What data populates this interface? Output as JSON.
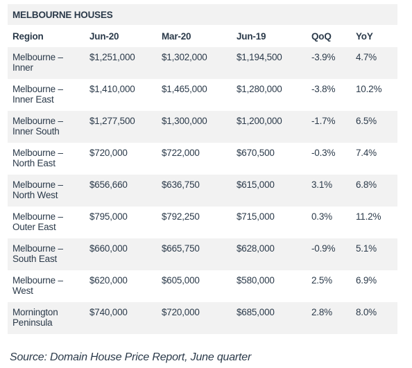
{
  "table": {
    "title": "MELBOURNE HOUSES",
    "headers": {
      "region": "Region",
      "jun20": "Jun-20",
      "mar20": "Mar-20",
      "jun19": "Jun-19",
      "qoq": "QoQ",
      "yoy": "YoY"
    },
    "rows": [
      {
        "region_line1": "Melbourne –",
        "region_line2": "Inner",
        "jun20": "$1,251,000",
        "mar20": "$1,302,000",
        "jun19": "$1,194,500",
        "qoq": "-3.9%",
        "yoy": "4.7%"
      },
      {
        "region_line1": "Melbourne –",
        "region_line2": "Inner East",
        "jun20": "$1,410,000",
        "mar20": "$1,465,000",
        "jun19": "$1,280,000",
        "qoq": "-3.8%",
        "yoy": "10.2%"
      },
      {
        "region_line1": "Melbourne –",
        "region_line2": "Inner South",
        "jun20": "$1,277,500",
        "mar20": "$1,300,000",
        "jun19": "$1,200,000",
        "qoq": "-1.7%",
        "yoy": "6.5%"
      },
      {
        "region_line1": "Melbourne –",
        "region_line2": "North East",
        "jun20": "$720,000",
        "mar20": "$722,000",
        "jun19": "$670,500",
        "qoq": "-0.3%",
        "yoy": "7.4%"
      },
      {
        "region_line1": "Melbourne –",
        "region_line2": "North West",
        "jun20": "$656,660",
        "mar20": "$636,750",
        "jun19": "$615,000",
        "qoq": "3.1%",
        "yoy": "6.8%"
      },
      {
        "region_line1": "Melbourne –",
        "region_line2": "Outer East",
        "jun20": "$795,000",
        "mar20": "$792,250",
        "jun19": "$715,000",
        "qoq": "0.3%",
        "yoy": "11.2%"
      },
      {
        "region_line1": "Melbourne –",
        "region_line2": "South East",
        "jun20": "$660,000",
        "mar20": "$665,750",
        "jun19": "$628,000",
        "qoq": "-0.9%",
        "yoy": "5.1%"
      },
      {
        "region_line1": "Melbourne –",
        "region_line2": "West",
        "jun20": "$620,000",
        "mar20": "$605,000",
        "jun19": "$580,000",
        "qoq": "2.5%",
        "yoy": "6.9%"
      },
      {
        "region_line1": "Mornington",
        "region_line2": "Peninsula",
        "jun20": "$740,000",
        "mar20": "$720,000",
        "jun19": "$685,000",
        "qoq": "2.8%",
        "yoy": "8.0%"
      }
    ]
  },
  "source": "Source: Domain House Price Report, June quarter",
  "colors": {
    "text": "#2b3a4a",
    "stripe": "#f2f2f2",
    "background": "#ffffff"
  }
}
